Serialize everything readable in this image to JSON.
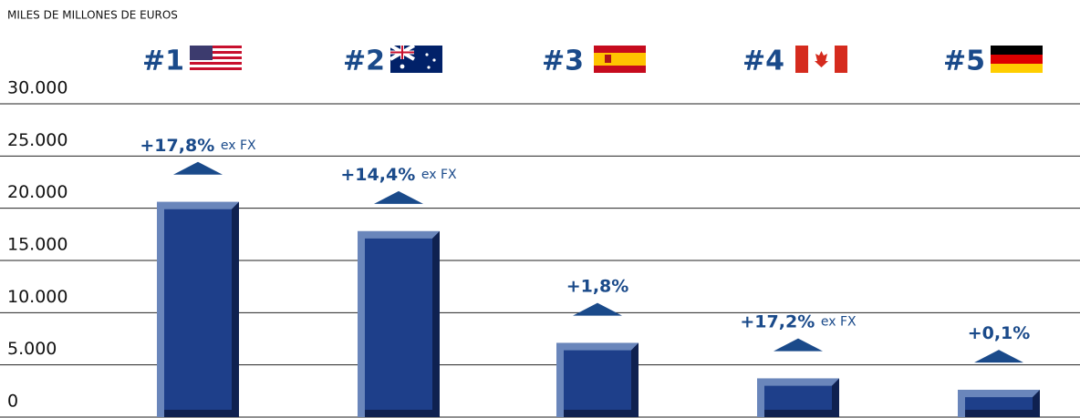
{
  "chart_data": {
    "type": "bar",
    "y_axis_label": "MILES DE MILLONES DE EUROS",
    "categories": [
      "#1",
      "#2",
      "#3",
      "#4",
      "#5"
    ],
    "values": [
      20600,
      17800,
      7100,
      3700,
      2600
    ],
    "annotations": [
      {
        "text": "+17,8%",
        "note": "ex FX"
      },
      {
        "text": "+14,4%",
        "note": "ex FX"
      },
      {
        "text": "+1,8%"
      },
      {
        "text": "+17,2%",
        "note": "ex FX"
      },
      {
        "text": "+0,1%"
      }
    ],
    "color": "#1e3f8a",
    "ylim": [
      0,
      30000
    ],
    "yticks": [
      {
        "value": 0,
        "label": "0"
      },
      {
        "value": 5000,
        "label": "5.000"
      },
      {
        "value": 10000,
        "label": "10.000"
      },
      {
        "value": 15000,
        "label": "15.000"
      },
      {
        "value": 20000,
        "label": "20.000"
      },
      {
        "value": 25000,
        "label": "25.000"
      },
      {
        "value": 30000,
        "label": "30.000"
      }
    ],
    "grid": true
  }
}
